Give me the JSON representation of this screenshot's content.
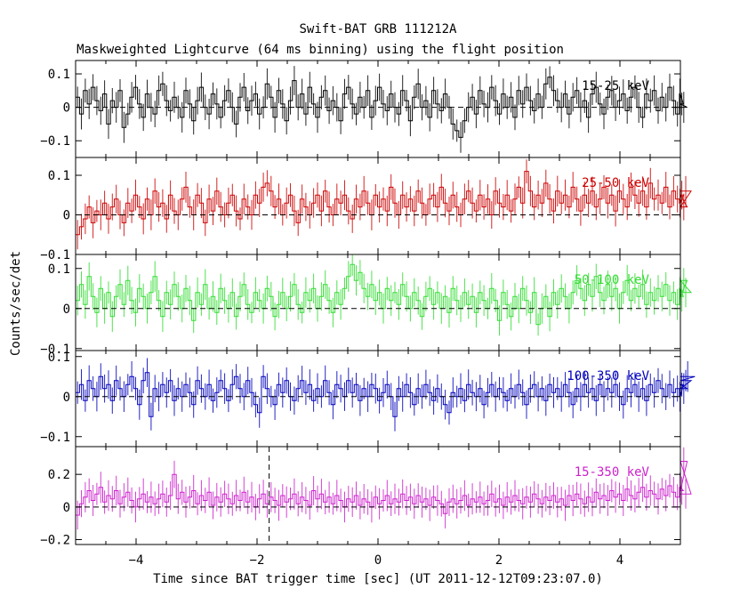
{
  "title": "Swift-BAT GRB 111212A",
  "subtitle": "Maskweighted Lightcurve (64 ms binning) using the flight position",
  "ylabel": "Counts/sec/det",
  "xlabel": "Time since BAT trigger time [sec] (UT 2011-12-12T09:23:07.0)",
  "chart_data": {
    "type": "line",
    "xlim": [
      -5,
      5
    ],
    "bin_width": 0.064,
    "x_ticks": [
      -4,
      -2,
      0,
      2,
      4
    ],
    "trigger_marker_x": -1.8,
    "panels": [
      {
        "label": "15-25 keV",
        "color": "#000000",
        "ylim": [
          -0.15,
          0.14
        ],
        "y_ticks": [
          -0.1,
          0,
          0.1
        ],
        "y_tick_labels": [
          "−0.1",
          "0",
          "0.1"
        ],
        "values": [
          0.03,
          -0.02,
          0.05,
          0.01,
          0.06,
          0.02,
          -0.01,
          0.04,
          -0.05,
          0.02,
          0.0,
          0.05,
          -0.06,
          -0.02,
          0.03,
          0.06,
          0.01,
          -0.03,
          0.04,
          0.0,
          -0.02,
          0.05,
          0.07,
          0.02,
          -0.01,
          0.03,
          0.0,
          -0.03,
          0.05,
          0.01,
          -0.04,
          0.02,
          0.06,
          0.0,
          -0.02,
          0.04,
          0.01,
          -0.03,
          0.02,
          0.05,
          0.0,
          -0.05,
          0.03,
          0.06,
          -0.01,
          0.02,
          0.04,
          -0.02,
          0.0,
          0.07,
          0.03,
          -0.03,
          0.05,
          0.01,
          -0.04,
          0.02,
          0.08,
          0.0,
          0.04,
          -0.02,
          0.06,
          0.01,
          -0.03,
          0.03,
          0.05,
          -0.01,
          0.02,
          0.0,
          -0.04,
          0.04,
          0.06,
          0.01,
          -0.02,
          0.03,
          0.0,
          0.05,
          -0.03,
          0.02,
          0.06,
          0.01,
          -0.01,
          0.04,
          0.0,
          -0.02,
          0.05,
          0.02,
          -0.04,
          0.03,
          0.07,
          0.0,
          0.02,
          -0.03,
          0.05,
          0.01,
          -0.01,
          0.04,
          0.0,
          -0.05,
          -0.07,
          -0.09,
          -0.04,
          0.0,
          0.03,
          -0.02,
          0.05,
          0.01,
          0.0,
          0.06,
          0.02,
          -0.02,
          0.04,
          0.0,
          0.03,
          -0.03,
          0.05,
          0.01,
          0.06,
          0.02,
          -0.01,
          0.04,
          0.0,
          0.07,
          0.09,
          0.05,
          0.02,
          0.0,
          0.04,
          -0.02,
          0.03,
          0.05,
          0.0,
          0.02,
          -0.03,
          0.04,
          0.06,
          0.01,
          -0.02,
          0.03,
          0.05,
          0.0,
          0.02,
          0.04,
          -0.01,
          0.03,
          0.06,
          0.0,
          -0.03,
          0.04,
          0.02,
          0.05,
          -0.01,
          0.03,
          0.0,
          0.06,
          0.02,
          -0.02,
          0.04,
          0.01,
          0.0
        ]
      },
      {
        "label": "25-50 keV",
        "color": "#cc0000",
        "ylim": [
          -0.1,
          0.145
        ],
        "y_ticks": [
          -0.1,
          0,
          0.1
        ],
        "y_tick_labels": [
          "−0.1",
          "0",
          "0.1"
        ],
        "values": [
          -0.05,
          -0.03,
          -0.01,
          0.02,
          -0.02,
          0.01,
          0.0,
          0.03,
          -0.01,
          0.02,
          0.04,
          0.0,
          -0.02,
          0.03,
          0.01,
          0.05,
          0.02,
          -0.01,
          0.04,
          0.0,
          0.06,
          0.02,
          0.03,
          -0.01,
          0.05,
          0.01,
          0.0,
          0.04,
          0.07,
          0.02,
          0.0,
          0.05,
          0.03,
          -0.02,
          0.04,
          0.01,
          0.06,
          0.02,
          0.0,
          0.03,
          0.05,
          0.01,
          -0.01,
          0.04,
          0.02,
          0.0,
          0.05,
          0.03,
          0.07,
          0.08,
          0.06,
          0.02,
          0.04,
          0.0,
          0.03,
          0.05,
          0.01,
          -0.02,
          0.04,
          0.02,
          0.0,
          0.03,
          0.05,
          0.01,
          0.06,
          0.02,
          0.0,
          0.04,
          0.03,
          0.05,
          0.01,
          -0.01,
          0.04,
          0.02,
          0.06,
          0.03,
          0.0,
          0.05,
          0.02,
          0.04,
          0.01,
          0.07,
          0.03,
          0.0,
          0.05,
          0.02,
          0.04,
          0.01,
          0.06,
          0.03,
          0.0,
          0.04,
          0.05,
          0.02,
          0.07,
          0.03,
          0.01,
          0.05,
          0.02,
          0.0,
          0.04,
          0.06,
          0.03,
          0.01,
          0.05,
          0.02,
          0.04,
          0.0,
          0.06,
          0.03,
          0.02,
          0.05,
          0.01,
          0.04,
          0.07,
          0.03,
          0.11,
          0.06,
          0.02,
          0.05,
          0.03,
          0.08,
          0.04,
          0.01,
          0.06,
          0.03,
          0.05,
          0.02,
          0.07,
          0.04,
          0.01,
          0.05,
          0.03,
          0.06,
          0.02,
          0.04,
          0.07,
          0.03,
          0.05,
          0.01,
          0.06,
          0.04,
          0.02,
          0.07,
          0.05,
          0.03,
          0.06,
          0.02,
          0.08,
          0.04,
          0.05,
          0.03,
          0.07,
          0.02,
          0.06,
          0.04,
          0.03,
          0.05,
          0.02,
          0.06
        ]
      },
      {
        "label": "50-100 keV",
        "color": "#33dd33",
        "ylim": [
          -0.105,
          0.135
        ],
        "y_ticks": [
          -0.1,
          0,
          0.1
        ],
        "y_tick_labels": [
          "−0.1",
          "0",
          "0.1"
        ],
        "values": [
          0.02,
          0.06,
          0.01,
          0.08,
          0.03,
          -0.01,
          0.05,
          0.0,
          0.04,
          -0.02,
          0.03,
          0.06,
          0.01,
          0.07,
          0.02,
          -0.01,
          0.05,
          0.03,
          0.0,
          0.04,
          0.08,
          0.02,
          -0.02,
          0.04,
          0.01,
          0.06,
          0.03,
          0.0,
          0.05,
          0.02,
          -0.03,
          0.04,
          0.01,
          0.06,
          0.0,
          0.03,
          -0.01,
          0.05,
          0.02,
          0.0,
          0.04,
          -0.02,
          0.03,
          0.06,
          0.01,
          -0.01,
          0.04,
          0.02,
          0.0,
          0.05,
          0.03,
          -0.02,
          0.01,
          0.04,
          0.0,
          0.03,
          0.06,
          0.01,
          -0.01,
          0.04,
          0.02,
          0.05,
          0.0,
          0.03,
          0.06,
          0.02,
          -0.01,
          0.04,
          0.01,
          0.05,
          0.08,
          0.11,
          0.07,
          0.09,
          0.05,
          0.03,
          0.06,
          0.02,
          0.04,
          0.0,
          0.05,
          0.02,
          0.04,
          0.01,
          0.06,
          0.03,
          0.0,
          0.04,
          0.02,
          -0.02,
          0.03,
          0.05,
          0.01,
          0.04,
          0.0,
          0.03,
          -0.01,
          0.05,
          0.02,
          0.0,
          0.04,
          0.01,
          0.03,
          -0.01,
          0.04,
          0.02,
          0.0,
          0.05,
          0.02,
          -0.03,
          0.04,
          0.01,
          -0.02,
          0.03,
          0.0,
          0.05,
          0.02,
          -0.01,
          0.04,
          -0.04,
          0.0,
          0.03,
          -0.02,
          0.04,
          0.01,
          0.05,
          0.03,
          0.0,
          0.04,
          0.07,
          0.05,
          0.02,
          0.06,
          0.03,
          0.08,
          0.04,
          0.02,
          0.06,
          0.03,
          0.05,
          0.0,
          0.04,
          0.07,
          0.02,
          0.05,
          0.03,
          0.06,
          0.01,
          0.04,
          0.02,
          0.05,
          0.03,
          0.06,
          0.02,
          0.04,
          0.01,
          0.05,
          0.03,
          0.07,
          0.04
        ]
      },
      {
        "label": "100-350 keV",
        "color": "#0000bb",
        "ylim": [
          -0.125,
          0.115
        ],
        "y_ticks": [
          -0.1,
          0,
          0.1
        ],
        "y_tick_labels": [
          "−0.1",
          "0",
          "0.1"
        ],
        "values": [
          0.01,
          0.03,
          -0.01,
          0.04,
          0.02,
          0.0,
          0.05,
          0.02,
          0.03,
          -0.01,
          0.04,
          0.02,
          0.0,
          0.03,
          0.05,
          0.02,
          -0.02,
          0.04,
          0.06,
          -0.05,
          0.02,
          0.0,
          0.03,
          0.01,
          0.04,
          -0.01,
          0.02,
          0.0,
          0.03,
          0.01,
          -0.02,
          0.04,
          0.02,
          0.0,
          0.03,
          -0.01,
          0.01,
          0.04,
          0.02,
          -0.01,
          0.03,
          0.05,
          0.02,
          0.0,
          0.04,
          0.01,
          -0.02,
          -0.04,
          0.05,
          0.02,
          0.0,
          -0.02,
          0.03,
          0.01,
          0.04,
          0.0,
          -0.01,
          0.02,
          0.04,
          0.01,
          0.03,
          -0.01,
          0.02,
          0.0,
          0.04,
          0.01,
          -0.02,
          0.03,
          0.02,
          0.0,
          0.04,
          0.01,
          0.03,
          -0.01,
          0.02,
          0.0,
          0.03,
          0.02,
          -0.01,
          0.01,
          0.03,
          0.0,
          -0.05,
          0.02,
          0.0,
          0.03,
          0.01,
          -0.02,
          0.02,
          0.0,
          0.03,
          0.01,
          -0.01,
          0.02,
          0.0,
          -0.02,
          -0.04,
          0.01,
          0.0,
          0.02,
          -0.01,
          0.03,
          0.01,
          0.0,
          0.02,
          -0.02,
          0.01,
          0.03,
          0.0,
          0.02,
          0.01,
          -0.01,
          0.02,
          0.0,
          0.03,
          0.01,
          -0.02,
          0.02,
          0.03,
          0.0,
          0.02,
          -0.01,
          0.03,
          0.01,
          0.02,
          0.0,
          0.03,
          0.01,
          -0.02,
          0.02,
          0.0,
          0.03,
          0.01,
          0.02,
          -0.01,
          0.03,
          0.0,
          0.02,
          0.01,
          0.03,
          0.0,
          -0.02,
          0.02,
          0.01,
          0.03,
          0.0,
          0.02,
          -0.01,
          0.03,
          0.01,
          0.04,
          0.02,
          0.0,
          0.03,
          0.01,
          0.02,
          0.0,
          0.03,
          0.02,
          0.04,
          0.05
        ]
      },
      {
        "label": "15-350 keV",
        "color": "#cc22cc",
        "ylim": [
          -0.23,
          0.37
        ],
        "y_ticks": [
          -0.2,
          0,
          0.2
        ],
        "y_tick_labels": [
          "−0.2",
          "0",
          "0.2"
        ],
        "values": [
          -0.05,
          0.02,
          0.06,
          0.1,
          0.04,
          0.08,
          0.12,
          0.03,
          0.07,
          0.05,
          0.1,
          0.02,
          0.06,
          0.09,
          0.04,
          0.0,
          0.05,
          0.08,
          0.03,
          0.06,
          0.02,
          0.05,
          0.08,
          0.03,
          0.07,
          0.2,
          0.05,
          0.09,
          0.03,
          0.06,
          0.1,
          0.02,
          0.07,
          0.04,
          0.09,
          0.01,
          0.06,
          0.03,
          0.08,
          0.05,
          0.02,
          0.07,
          0.04,
          0.09,
          0.03,
          0.06,
          0.0,
          0.05,
          0.08,
          0.02,
          0.06,
          0.04,
          0.01,
          0.07,
          0.03,
          0.05,
          0.08,
          0.02,
          0.06,
          0.04,
          0.01,
          0.1,
          0.05,
          0.08,
          0.03,
          0.06,
          0.02,
          0.07,
          0.04,
          0.0,
          0.05,
          0.03,
          0.07,
          0.01,
          0.05,
          0.03,
          0.0,
          0.06,
          0.02,
          0.04,
          0.07,
          0.02,
          0.05,
          0.03,
          0.08,
          0.04,
          0.06,
          0.02,
          0.07,
          0.03,
          0.05,
          0.01,
          0.06,
          0.04,
          0.02,
          -0.04,
          0.03,
          0.05,
          0.02,
          0.04,
          0.07,
          0.01,
          0.05,
          0.03,
          0.06,
          0.02,
          0.04,
          0.08,
          0.03,
          0.05,
          0.01,
          0.06,
          0.03,
          0.07,
          0.04,
          0.02,
          0.06,
          0.03,
          0.08,
          0.05,
          0.02,
          0.06,
          0.04,
          0.07,
          0.03,
          0.05,
          0.01,
          0.07,
          0.04,
          0.08,
          0.05,
          0.02,
          0.06,
          0.03,
          0.09,
          0.05,
          0.07,
          0.04,
          0.1,
          0.06,
          0.08,
          0.04,
          0.11,
          0.07,
          0.05,
          0.09,
          0.12,
          0.06,
          0.1,
          0.08,
          0.05,
          0.11,
          0.07,
          0.13,
          0.09,
          0.06,
          0.12,
          0.1,
          0.28,
          0.08
        ]
      }
    ]
  }
}
